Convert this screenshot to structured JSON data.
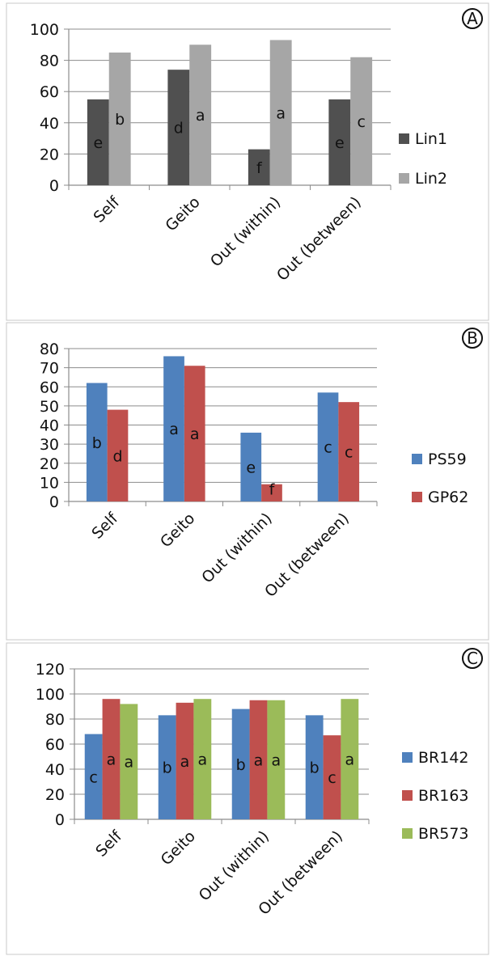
{
  "chart_data": [
    {
      "type": "bar",
      "panel_label": "A",
      "title": "",
      "xlabel": "",
      "ylabel": "",
      "categories": [
        "Self",
        "Geito",
        "Out (within)",
        "Out (between)"
      ],
      "ylim": [
        0,
        100
      ],
      "yticks": [
        0,
        20,
        40,
        60,
        80,
        100
      ],
      "grid": true,
      "legend_position": "right",
      "series": [
        {
          "name": "Lin1",
          "color": "#505050",
          "values": [
            55,
            74,
            23,
            55
          ],
          "labels": [
            "e",
            "d",
            "f",
            "e"
          ]
        },
        {
          "name": "Lin2",
          "color": "#a6a6a6",
          "values": [
            85,
            90,
            93,
            82
          ],
          "labels": [
            "b",
            "a",
            "a",
            "c"
          ]
        }
      ]
    },
    {
      "type": "bar",
      "panel_label": "B",
      "title": "",
      "xlabel": "",
      "ylabel": "",
      "categories": [
        "Self",
        "Geito",
        "Out (within)",
        "Out (between)"
      ],
      "ylim": [
        0,
        80
      ],
      "yticks": [
        0,
        10,
        20,
        30,
        40,
        50,
        60,
        70,
        80
      ],
      "grid": true,
      "legend_position": "right",
      "series": [
        {
          "name": "PS59",
          "color": "#4f81bd",
          "values": [
            62,
            76,
            36,
            57
          ],
          "labels": [
            "b",
            "a",
            "e",
            "c"
          ]
        },
        {
          "name": "GP62",
          "color": "#c0504d",
          "values": [
            48,
            71,
            9,
            52
          ],
          "labels": [
            "d",
            "a",
            "f",
            "c"
          ]
        }
      ]
    },
    {
      "type": "bar",
      "panel_label": "C",
      "title": "",
      "xlabel": "",
      "ylabel": "",
      "categories": [
        "Self",
        "Geito",
        "Out (within)",
        "Out (between)"
      ],
      "ylim": [
        0,
        120
      ],
      "yticks": [
        0,
        20,
        40,
        60,
        80,
        100,
        120
      ],
      "grid": true,
      "legend_position": "right",
      "series": [
        {
          "name": "BR142",
          "color": "#4f81bd",
          "values": [
            68,
            83,
            88,
            83
          ],
          "labels": [
            "c",
            "b",
            "b",
            "b"
          ]
        },
        {
          "name": "BR163",
          "color": "#c0504d",
          "values": [
            96,
            93,
            95,
            67
          ],
          "labels": [
            "a",
            "a",
            "a",
            "c"
          ]
        },
        {
          "name": "BR573",
          "color": "#9bbb59",
          "values": [
            92,
            96,
            95,
            96
          ],
          "labels": [
            "a",
            "a",
            "a",
            "a"
          ]
        }
      ]
    }
  ]
}
